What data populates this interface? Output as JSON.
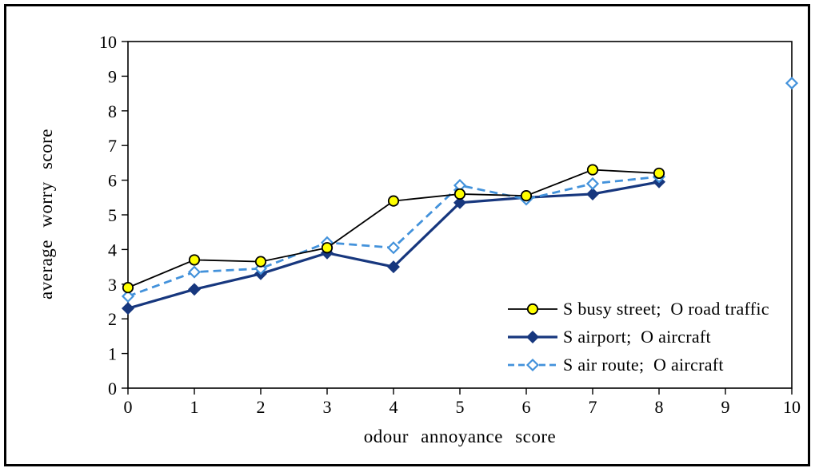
{
  "figure": {
    "background": "#ffffff",
    "frame_color": "#000000",
    "text_color": "#000000"
  },
  "chart_data": {
    "type": "line",
    "title": "",
    "xlabel": "odour annoyance score",
    "ylabel": "average worry score",
    "xlim": [
      0,
      10
    ],
    "ylim": [
      0,
      10
    ],
    "x_ticks": [
      0,
      1,
      2,
      3,
      4,
      5,
      6,
      7,
      8,
      9,
      10
    ],
    "y_ticks": [
      0,
      1,
      2,
      3,
      4,
      5,
      6,
      7,
      8,
      9,
      10
    ],
    "grid": false,
    "legend_position": "inside-bottom-right",
    "series": [
      {
        "name": "S airport;  O aircraft",
        "line_color": "#17377E",
        "line_style": "solid",
        "line_width": 3.2,
        "marker": "diamond",
        "marker_fill": "#17377E",
        "marker_stroke": "#17377E",
        "marker_size": 7,
        "x": [
          0,
          1,
          2,
          3,
          4,
          5,
          6,
          7,
          8
        ],
        "y": [
          2.3,
          2.85,
          3.3,
          3.9,
          3.5,
          5.35,
          5.5,
          5.6,
          5.95
        ],
        "detached_points": []
      },
      {
        "name": "S air route;  O aircraft",
        "line_color": "#4392DB",
        "line_style": "dashed",
        "line_width": 2.8,
        "marker": "diamond",
        "marker_fill": "#FFFFFF",
        "marker_stroke": "#4392DB",
        "marker_size": 6.5,
        "x": [
          0,
          1,
          2,
          3,
          4,
          5,
          6,
          7,
          8
        ],
        "y": [
          2.65,
          3.35,
          3.45,
          4.2,
          4.05,
          5.85,
          5.45,
          5.9,
          6.1
        ],
        "detached_points": [
          {
            "x": 10,
            "y": 8.8
          }
        ]
      },
      {
        "name": "S busy street;  O road traffic",
        "line_color": "#000000",
        "line_style": "solid",
        "line_width": 1.8,
        "marker": "circle",
        "marker_fill": "#FFFF00",
        "marker_stroke": "#000000",
        "marker_size": 6.2,
        "x": [
          0,
          1,
          2,
          3,
          4,
          5,
          6,
          7,
          8
        ],
        "y": [
          2.9,
          3.7,
          3.65,
          4.05,
          5.4,
          5.6,
          5.55,
          6.3,
          6.2
        ],
        "detached_points": []
      }
    ],
    "legend_order": [
      2,
      0,
      1
    ]
  }
}
